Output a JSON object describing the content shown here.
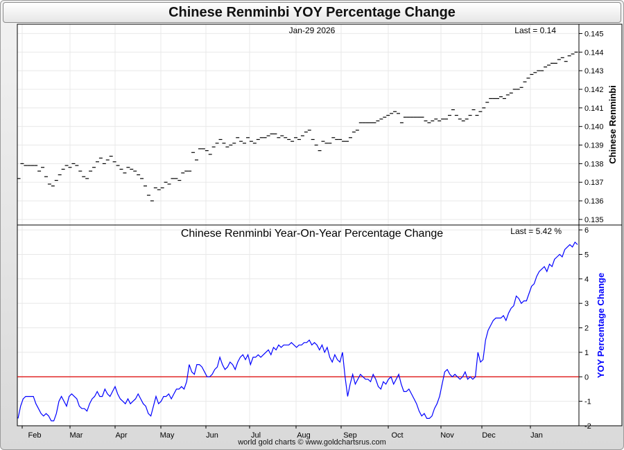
{
  "page": {
    "title": "Chinese Renminbi YOY Percentage Change",
    "footer": "world gold charts © www.goldchartsrus.com"
  },
  "chart_data": [
    {
      "type": "scatter",
      "marker": "horizontal-dash",
      "date_label": "Jan-29  2026",
      "last_label": "Last = 0.14",
      "ylabel": "Chinese Renminbi",
      "ylim": [
        0.1347,
        0.1455
      ],
      "yticks": [
        "0.145",
        "0.144",
        "0.143",
        "0.142",
        "0.141",
        "0.140",
        "0.139",
        "0.138",
        "0.137",
        "0.136",
        "0.135"
      ],
      "xlabels": [
        "Feb",
        "Mar",
        "Apr",
        "May",
        "Jun",
        "Jul",
        "Aug",
        "Sep",
        "Oct",
        "Nov",
        "Dec",
        "Jan"
      ],
      "grid": true,
      "values": [
        0.1372,
        0.138,
        0.1379,
        0.1379,
        0.1379,
        0.1379,
        0.1376,
        0.1378,
        0.1373,
        0.1369,
        0.1368,
        0.1371,
        0.1374,
        0.1377,
        0.1379,
        0.1378,
        0.138,
        0.1379,
        0.1376,
        0.1373,
        0.1372,
        0.1376,
        0.1378,
        0.1381,
        0.1383,
        0.138,
        0.1382,
        0.1384,
        0.1381,
        0.1379,
        0.1377,
        0.1375,
        0.1378,
        0.1377,
        0.1376,
        0.1374,
        0.1372,
        0.1368,
        0.1363,
        0.136,
        0.1367,
        0.1366,
        0.1367,
        0.137,
        0.1369,
        0.1372,
        0.1372,
        0.1371,
        0.1375,
        0.1376,
        0.1376,
        0.1386,
        0.1382,
        0.1388,
        0.1388,
        0.1387,
        0.1385,
        0.1389,
        0.1391,
        0.1393,
        0.1391,
        0.1389,
        0.139,
        0.1391,
        0.1394,
        0.1392,
        0.1391,
        0.1394,
        0.1392,
        0.1391,
        0.1393,
        0.1394,
        0.1394,
        0.1395,
        0.1396,
        0.1396,
        0.1394,
        0.1395,
        0.1394,
        0.1393,
        0.1392,
        0.1394,
        0.1393,
        0.1395,
        0.1397,
        0.1398,
        0.1393,
        0.139,
        0.1387,
        0.1392,
        0.1391,
        0.1391,
        0.1394,
        0.1393,
        0.1393,
        0.1392,
        0.1392,
        0.1394,
        0.1397,
        0.1398,
        0.1402,
        0.1402,
        0.1402,
        0.1402,
        0.1402,
        0.1403,
        0.1404,
        0.1405,
        0.1406,
        0.1407,
        0.1408,
        0.1407,
        0.1402,
        0.1405,
        0.1405,
        0.1405,
        0.1405,
        0.1405,
        0.1405,
        0.1403,
        0.1402,
        0.1403,
        0.1404,
        0.1403,
        0.1404,
        0.1404,
        0.1406,
        0.1409,
        0.1406,
        0.1404,
        0.1403,
        0.1404,
        0.1406,
        0.1409,
        0.1406,
        0.1408,
        0.141,
        0.1413,
        0.1415,
        0.1415,
        0.1415,
        0.1416,
        0.1415,
        0.1417,
        0.1418,
        0.142,
        0.142,
        0.1421,
        0.1424,
        0.1426,
        0.1428,
        0.1429,
        0.143,
        0.143,
        0.1432,
        0.1433,
        0.1434,
        0.1434,
        0.1436,
        0.1437,
        0.1435,
        0.1438,
        0.1439,
        0.144
      ]
    },
    {
      "type": "line",
      "title": "Chinese Renminbi Year-On-Year Percentage Change",
      "last_label": "Last = 5.42 %",
      "ylabel": "YOY Percentage Change",
      "ylim": [
        -2,
        6.2
      ],
      "yticks": [
        "6",
        "5",
        "4",
        "3",
        "2",
        "1",
        "0",
        "-1",
        "-2"
      ],
      "reference_line": 0,
      "line_color": "#0000ff",
      "reference_color": "#dd0000",
      "grid": true,
      "values": [
        -1.7,
        -1.2,
        -0.9,
        -0.8,
        -0.8,
        -0.8,
        -0.8,
        -1.1,
        -1.3,
        -1.5,
        -1.6,
        -1.5,
        -1.6,
        -1.8,
        -1.8,
        -1.5,
        -1.0,
        -0.8,
        -1.0,
        -1.2,
        -0.8,
        -0.7,
        -0.8,
        -0.9,
        -1.2,
        -1.3,
        -1.3,
        -1.4,
        -1.1,
        -0.9,
        -0.8,
        -0.6,
        -0.8,
        -0.8,
        -0.5,
        -0.7,
        -0.8,
        -0.6,
        -0.4,
        -0.7,
        -0.9,
        -1.0,
        -1.1,
        -0.9,
        -1.1,
        -1.0,
        -0.9,
        -0.7,
        -0.9,
        -1.1,
        -1.2,
        -1.5,
        -1.6,
        -1.2,
        -0.8,
        -1.1,
        -1.0,
        -0.8,
        -0.8,
        -0.7,
        -0.9,
        -0.7,
        -0.5,
        -0.5,
        -0.4,
        -0.5,
        -0.2,
        0.5,
        0.2,
        0.1,
        0.5,
        0.5,
        0.4,
        0.2,
        0.0,
        0.0,
        0.1,
        0.3,
        0.4,
        0.8,
        0.5,
        0.3,
        0.4,
        0.6,
        0.5,
        0.3,
        0.6,
        0.8,
        0.9,
        0.7,
        0.9,
        0.5,
        0.8,
        0.8,
        0.9,
        0.8,
        0.9,
        1.0,
        1.1,
        0.9,
        1.2,
        1.1,
        1.3,
        1.2,
        1.3,
        1.3,
        1.3,
        1.4,
        1.3,
        1.2,
        1.3,
        1.3,
        1.4,
        1.4,
        1.5,
        1.3,
        1.4,
        1.3,
        1.1,
        1.3,
        1.0,
        1.2,
        0.8,
        0.6,
        0.9,
        0.7,
        0.6,
        1.0,
        0.0,
        -0.8,
        -0.3,
        0.1,
        -0.3,
        -0.1,
        0.1,
        0.0,
        -0.1,
        -0.1,
        -0.2,
        0.1,
        -0.1,
        -0.4,
        -0.5,
        -0.2,
        -0.3,
        -0.1,
        0.0,
        -0.3,
        -0.1,
        0.1,
        -0.3,
        -0.6,
        -0.6,
        -0.5,
        -0.7,
        -0.9,
        -1.1,
        -1.4,
        -1.6,
        -1.5,
        -1.7,
        -1.7,
        -1.6,
        -1.3,
        -1.1,
        -0.8,
        -0.3,
        0.2,
        0.3,
        0.1,
        0.0,
        0.1,
        0.0,
        -0.1,
        0.0,
        0.2,
        -0.1,
        0.0,
        -0.1,
        0.0,
        1.0,
        0.6,
        0.7,
        1.5,
        1.9,
        2.1,
        2.3,
        2.4,
        2.4,
        2.4,
        2.5,
        2.3,
        2.6,
        2.8,
        2.9,
        3.3,
        3.2,
        3.0,
        3.1,
        3.1,
        3.4,
        3.7,
        3.8,
        4.1,
        4.3,
        4.4,
        4.5,
        4.3,
        4.6,
        4.5,
        4.8,
        4.9,
        5.0,
        4.9,
        5.2,
        5.3,
        5.4,
        5.3,
        5.5,
        5.4
      ]
    }
  ]
}
